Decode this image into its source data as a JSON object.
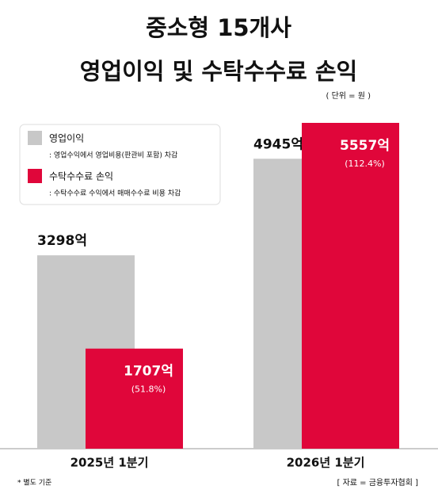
{
  "chart_data": {
    "type": "bar",
    "title": [
      "중소형 15개사",
      "영업이익 및 수탁수수료 손익"
    ],
    "unit_note": "( 단위 = 원 )",
    "categories": [
      "2025년 1분기",
      "2026년 1분기"
    ],
    "series": [
      {
        "name": "영업이익",
        "description": ": 영업수익에서 영업비용(판관비 포함) 차감",
        "color": "#c8c8c8",
        "values": [
          3298,
          4945
        ],
        "value_labels": [
          "3298억",
          "4945억"
        ]
      },
      {
        "name": "수탁수수료 손익",
        "description": ": 수탁수수료 수익에서 매매수수료 비용 차감",
        "color": "#e0063a",
        "values": [
          1707,
          5557
        ],
        "value_labels": [
          "1707억",
          "5557억"
        ],
        "ratio_labels": [
          "(51.8%)",
          "(112.4%)"
        ]
      }
    ],
    "footnote": "* 별도 기준",
    "source": "[ 자료 = 금융투자협회 ]"
  }
}
